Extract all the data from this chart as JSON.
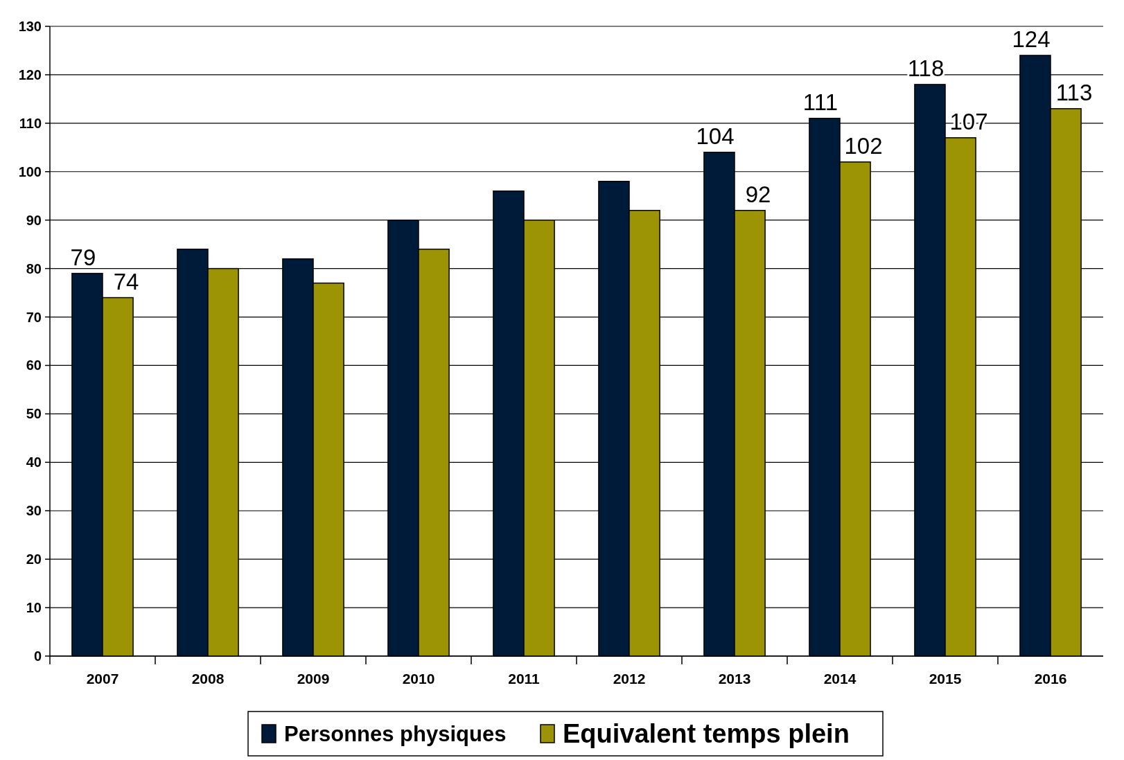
{
  "chart_data": {
    "type": "bar",
    "categories": [
      "2007",
      "2008",
      "2009",
      "2010",
      "2011",
      "2012",
      "2013",
      "2014",
      "2015",
      "2016"
    ],
    "series": [
      {
        "name": "Personnes physiques",
        "color": "#001a3a",
        "values": [
          79,
          84,
          82,
          90,
          96,
          98,
          104,
          111,
          118,
          124
        ],
        "value_labels": [
          "79",
          null,
          null,
          null,
          null,
          null,
          "104",
          "111",
          "118",
          "124"
        ]
      },
      {
        "name": "Equivalent temps plein",
        "color": "#9c9405",
        "values": [
          74,
          80,
          77,
          84,
          90,
          92,
          92,
          102,
          107,
          113
        ],
        "value_labels": [
          "74",
          null,
          null,
          null,
          null,
          null,
          "92",
          "102",
          "107",
          "113"
        ]
      }
    ],
    "ylim": [
      0,
      130
    ],
    "yticks": [
      0,
      10,
      20,
      30,
      40,
      50,
      60,
      70,
      80,
      90,
      100,
      110,
      120,
      130
    ],
    "grid": "y",
    "legend": "bottom"
  }
}
